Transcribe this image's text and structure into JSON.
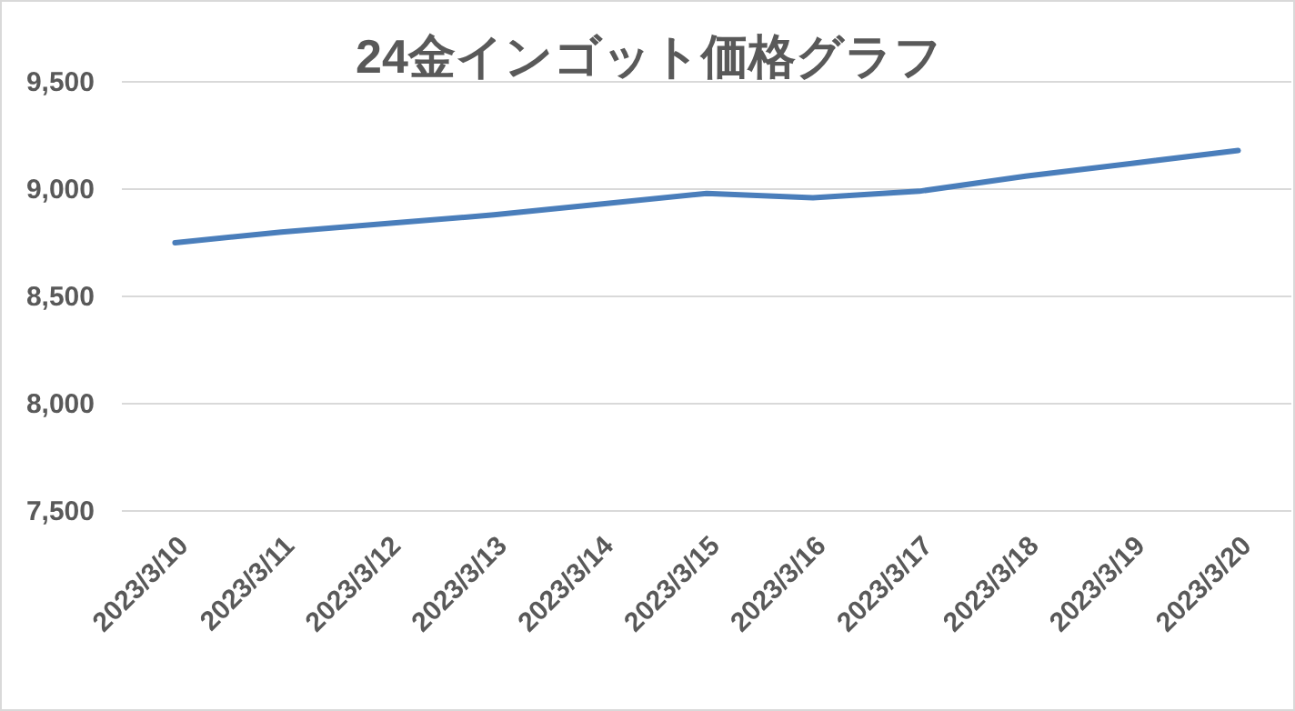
{
  "chart_data": {
    "type": "line",
    "title": "24金インゴット価格グラフ",
    "categories": [
      "2023/3/10",
      "2023/3/11",
      "2023/3/12",
      "2023/3/13",
      "2023/3/14",
      "2023/3/15",
      "2023/3/16",
      "2023/3/17",
      "2023/3/18",
      "2023/3/19",
      "2023/3/20"
    ],
    "series": [
      {
        "color": "#4a7ebb",
        "values": [
          8750,
          8800,
          8840,
          8880,
          8930,
          8980,
          8960,
          8990,
          9060,
          9120,
          9180
        ]
      }
    ],
    "ylim": [
      7500,
      9500
    ],
    "yticks": [
      {
        "value": 7500,
        "label": "7,500"
      },
      {
        "value": 8000,
        "label": "8,000"
      },
      {
        "value": 8500,
        "label": "8,500"
      },
      {
        "value": 9000,
        "label": "9,000"
      },
      {
        "value": 9500,
        "label": "9,500"
      }
    ],
    "grid": "y"
  }
}
